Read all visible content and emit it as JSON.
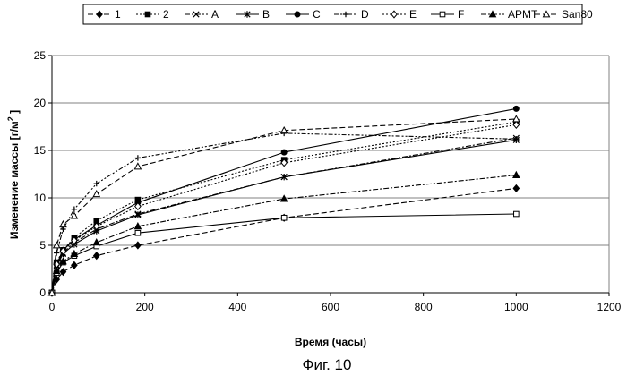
{
  "chart_data": {
    "type": "line",
    "xlabel": "Время (часы)",
    "ylabel_main": "Изменение массы [г/м",
    "ylabel_sup": "2",
    "ylabel_end": " ]",
    "caption": "Фиг. 10",
    "xlim": [
      0,
      1200
    ],
    "ylim": [
      0,
      25
    ],
    "xticks": [
      0,
      200,
      400,
      600,
      800,
      1000,
      1200
    ],
    "yticks": [
      0,
      5,
      10,
      15,
      20,
      25
    ],
    "grid": "horizontal",
    "legend_position": "top",
    "series": [
      {
        "name": "1",
        "marker": "diamond-filled",
        "dash": "6,3",
        "x": [
          0,
          10,
          24,
          48,
          96,
          185,
          500,
          1000
        ],
        "y": [
          0,
          1.4,
          2.2,
          2.9,
          3.9,
          5.0,
          7.9,
          11.0
        ]
      },
      {
        "name": "2",
        "marker": "square-filled",
        "dash": "2,2",
        "x": [
          0,
          10,
          24,
          48,
          96,
          185,
          500,
          1000
        ],
        "y": [
          0,
          3.2,
          4.5,
          5.8,
          7.6,
          9.8,
          14.0,
          18.0
        ]
      },
      {
        "name": "A",
        "marker": "x",
        "dash": "6,2,2,2",
        "x": [
          0,
          10,
          24,
          48,
          96,
          185,
          500,
          1000
        ],
        "y": [
          0,
          2.9,
          4.2,
          5.3,
          6.7,
          8.3,
          12.2,
          16.3
        ]
      },
      {
        "name": "B",
        "marker": "asterisk",
        "dash": "",
        "x": [
          0,
          10,
          24,
          48,
          96,
          185,
          500,
          1000
        ],
        "y": [
          0,
          2.8,
          4.1,
          5.1,
          6.5,
          8.2,
          12.2,
          16.1
        ]
      },
      {
        "name": "C",
        "marker": "circle-filled",
        "dash": "",
        "x": [
          0,
          10,
          24,
          48,
          96,
          185,
          500,
          1000
        ],
        "y": [
          0,
          3.0,
          4.5,
          5.6,
          7.1,
          9.5,
          14.8,
          19.4
        ]
      },
      {
        "name": "D",
        "marker": "plus",
        "dash": "5,2,2,2,2,2",
        "x": [
          0,
          10,
          24,
          48,
          96,
          185,
          500,
          1000
        ],
        "y": [
          0,
          4.2,
          6.7,
          8.8,
          11.5,
          14.2,
          16.8,
          16.2
        ]
      },
      {
        "name": "E",
        "marker": "diamond-open",
        "dash": "2,2",
        "x": [
          0,
          10,
          24,
          48,
          96,
          185,
          500,
          1000
        ],
        "y": [
          0,
          3.0,
          4.4,
          5.5,
          7.0,
          9.1,
          13.7,
          17.7
        ]
      },
      {
        "name": "F",
        "marker": "square-open",
        "dash": "",
        "x": [
          0,
          10,
          24,
          48,
          96,
          185,
          500,
          1000
        ],
        "y": [
          0,
          2.1,
          3.2,
          3.9,
          4.9,
          6.3,
          7.9,
          8.3
        ]
      },
      {
        "name": "APMT",
        "marker": "triangle-filled",
        "dash": "6,2,2,2",
        "x": [
          0,
          10,
          24,
          48,
          96,
          185,
          500,
          1000
        ],
        "y": [
          0,
          2.3,
          3.3,
          4.1,
          5.3,
          7.0,
          9.9,
          12.4
        ]
      },
      {
        "name": "San80",
        "marker": "triangle-open",
        "dash": "6,3",
        "x": [
          0,
          10,
          24,
          48,
          96,
          185,
          500,
          1000
        ],
        "y": [
          0,
          5.0,
          7.2,
          8.1,
          10.4,
          13.3,
          17.1,
          18.3
        ]
      }
    ]
  }
}
